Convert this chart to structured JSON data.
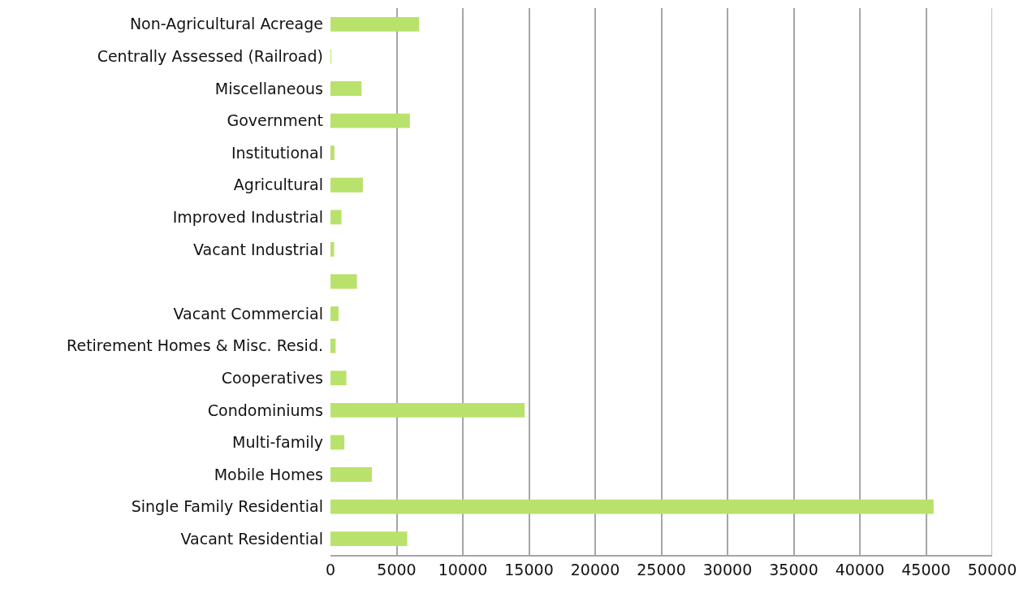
{
  "chart_data": {
    "type": "bar",
    "orientation": "horizontal",
    "categories": [
      "Non-Agricultural Acreage",
      "Centrally Assessed (Railroad)",
      "Miscellaneous",
      "Government",
      "Institutional",
      "Agricultural",
      "Improved Industrial",
      "Vacant Industrial",
      null,
      "Vacant Commercial",
      "Retirement Homes & Misc. Resid.",
      "Cooperatives",
      "Condominiums",
      "Multi-family",
      "Mobile Homes",
      "Single Family Residential",
      "Vacant Residential"
    ],
    "values": [
      6700,
      30,
      2350,
      6000,
      300,
      2450,
      830,
      280,
      2000,
      610,
      390,
      1200,
      14670,
      1050,
      3130,
      45570,
      5800
    ],
    "color": "#b8e26c",
    "xlim": [
      0,
      50000
    ],
    "xticks": [
      0,
      5000,
      10000,
      15000,
      20000,
      25000,
      30000,
      35000,
      40000,
      45000,
      50000
    ],
    "grid": "x"
  }
}
